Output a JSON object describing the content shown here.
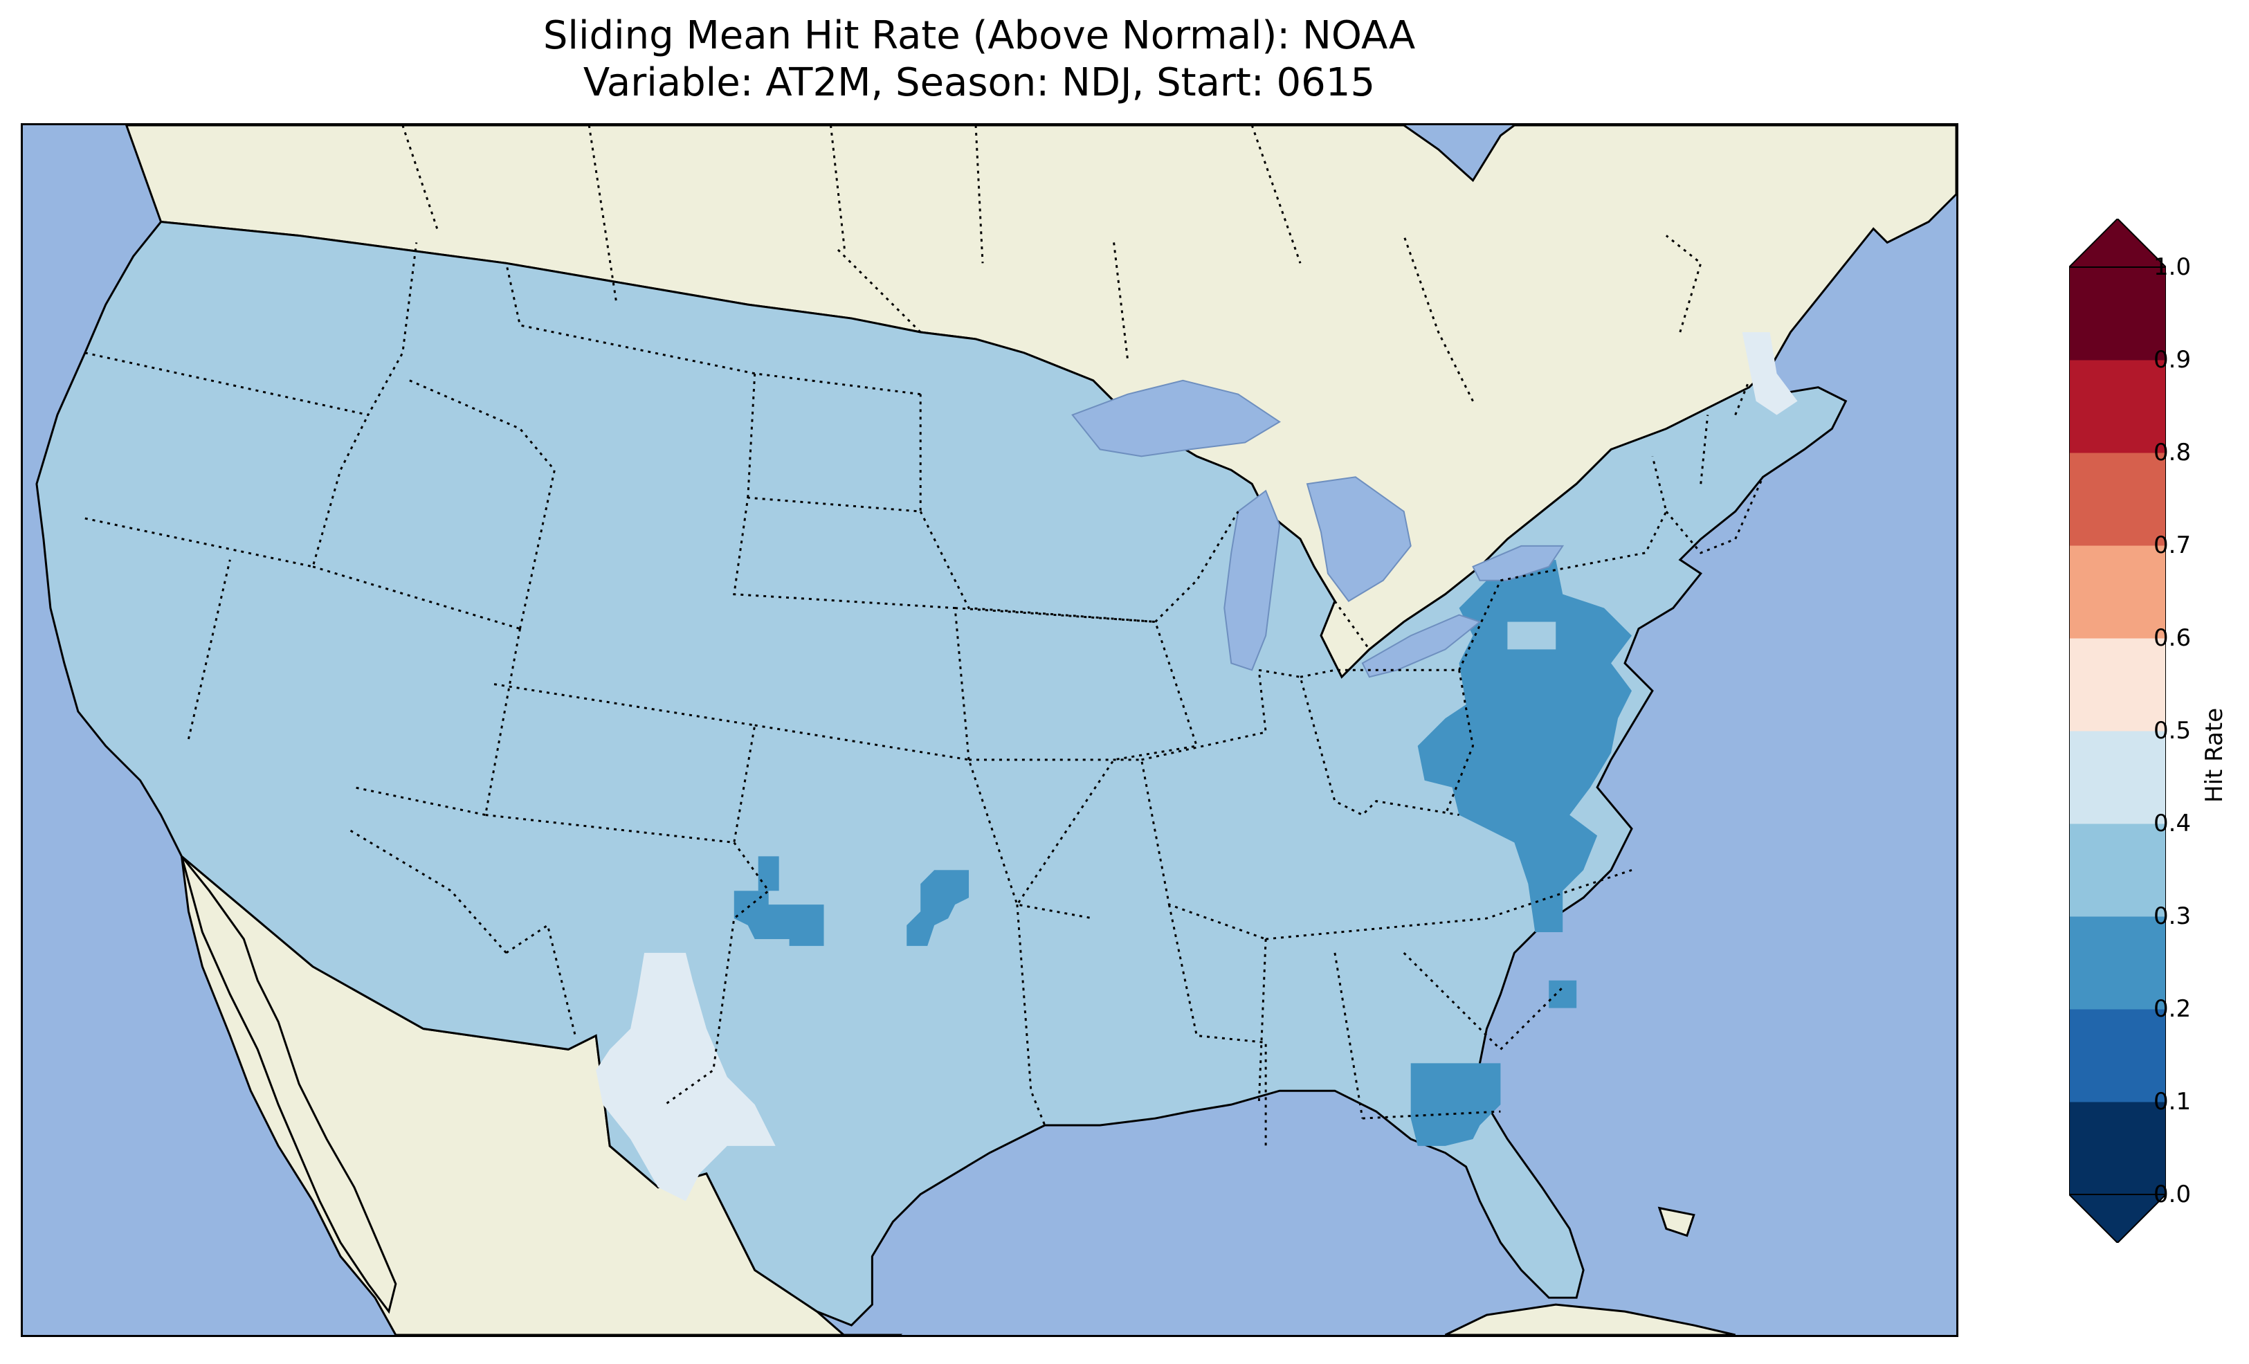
{
  "title": {
    "line1": "Sliding Mean Hit Rate (Above Normal): NOAA",
    "line2": "Variable: AT2M, Season: NDJ, Start: 0615"
  },
  "colors": {
    "ocean": "#97b6e1",
    "land_outside": "#efefdb",
    "lakes": "#97b6e1",
    "range_0.2_0.3": "#4393c3",
    "range_0.3_0.4": "#a6cde3",
    "range_0.4_0.5": "#e0ebf3"
  },
  "colorbar": {
    "label": "Hit Rate",
    "ticks": [
      "0.0",
      "0.1",
      "0.2",
      "0.3",
      "0.4",
      "0.5",
      "0.6",
      "0.7",
      "0.8",
      "0.9",
      "1.0"
    ],
    "bin_colors": [
      "#053061",
      "#2166ac",
      "#4393c3",
      "#92c5de",
      "#d1e5f0",
      "#fbe5d9",
      "#f4a582",
      "#d6604d",
      "#b2182b",
      "#67001f"
    ],
    "extend_low_color": "#053061",
    "extend_high_color": "#67001f"
  },
  "map": {
    "projection": "lambert-conformal",
    "region": "contiguous-united-states",
    "dominant_hit_rate_range": "0.3-0.4",
    "highlighted_regions": [
      {
        "area": "mid-atlantic-appalachians",
        "hit_rate_range": "0.2-0.3"
      },
      {
        "area": "eastern-carolinas",
        "hit_rate_range": "0.2-0.3"
      },
      {
        "area": "georgia-north-florida",
        "hit_rate_range": "0.2-0.3"
      },
      {
        "area": "texas-oklahoma-panhandle",
        "hit_rate_range": "0.2-0.3"
      },
      {
        "area": "central-oklahoma",
        "hit_rate_range": "0.2-0.3"
      },
      {
        "area": "west-texas-trans-pecos",
        "hit_rate_range": "0.4-0.5"
      },
      {
        "area": "northern-maine",
        "hit_rate_range": "0.4-0.5"
      }
    ]
  }
}
